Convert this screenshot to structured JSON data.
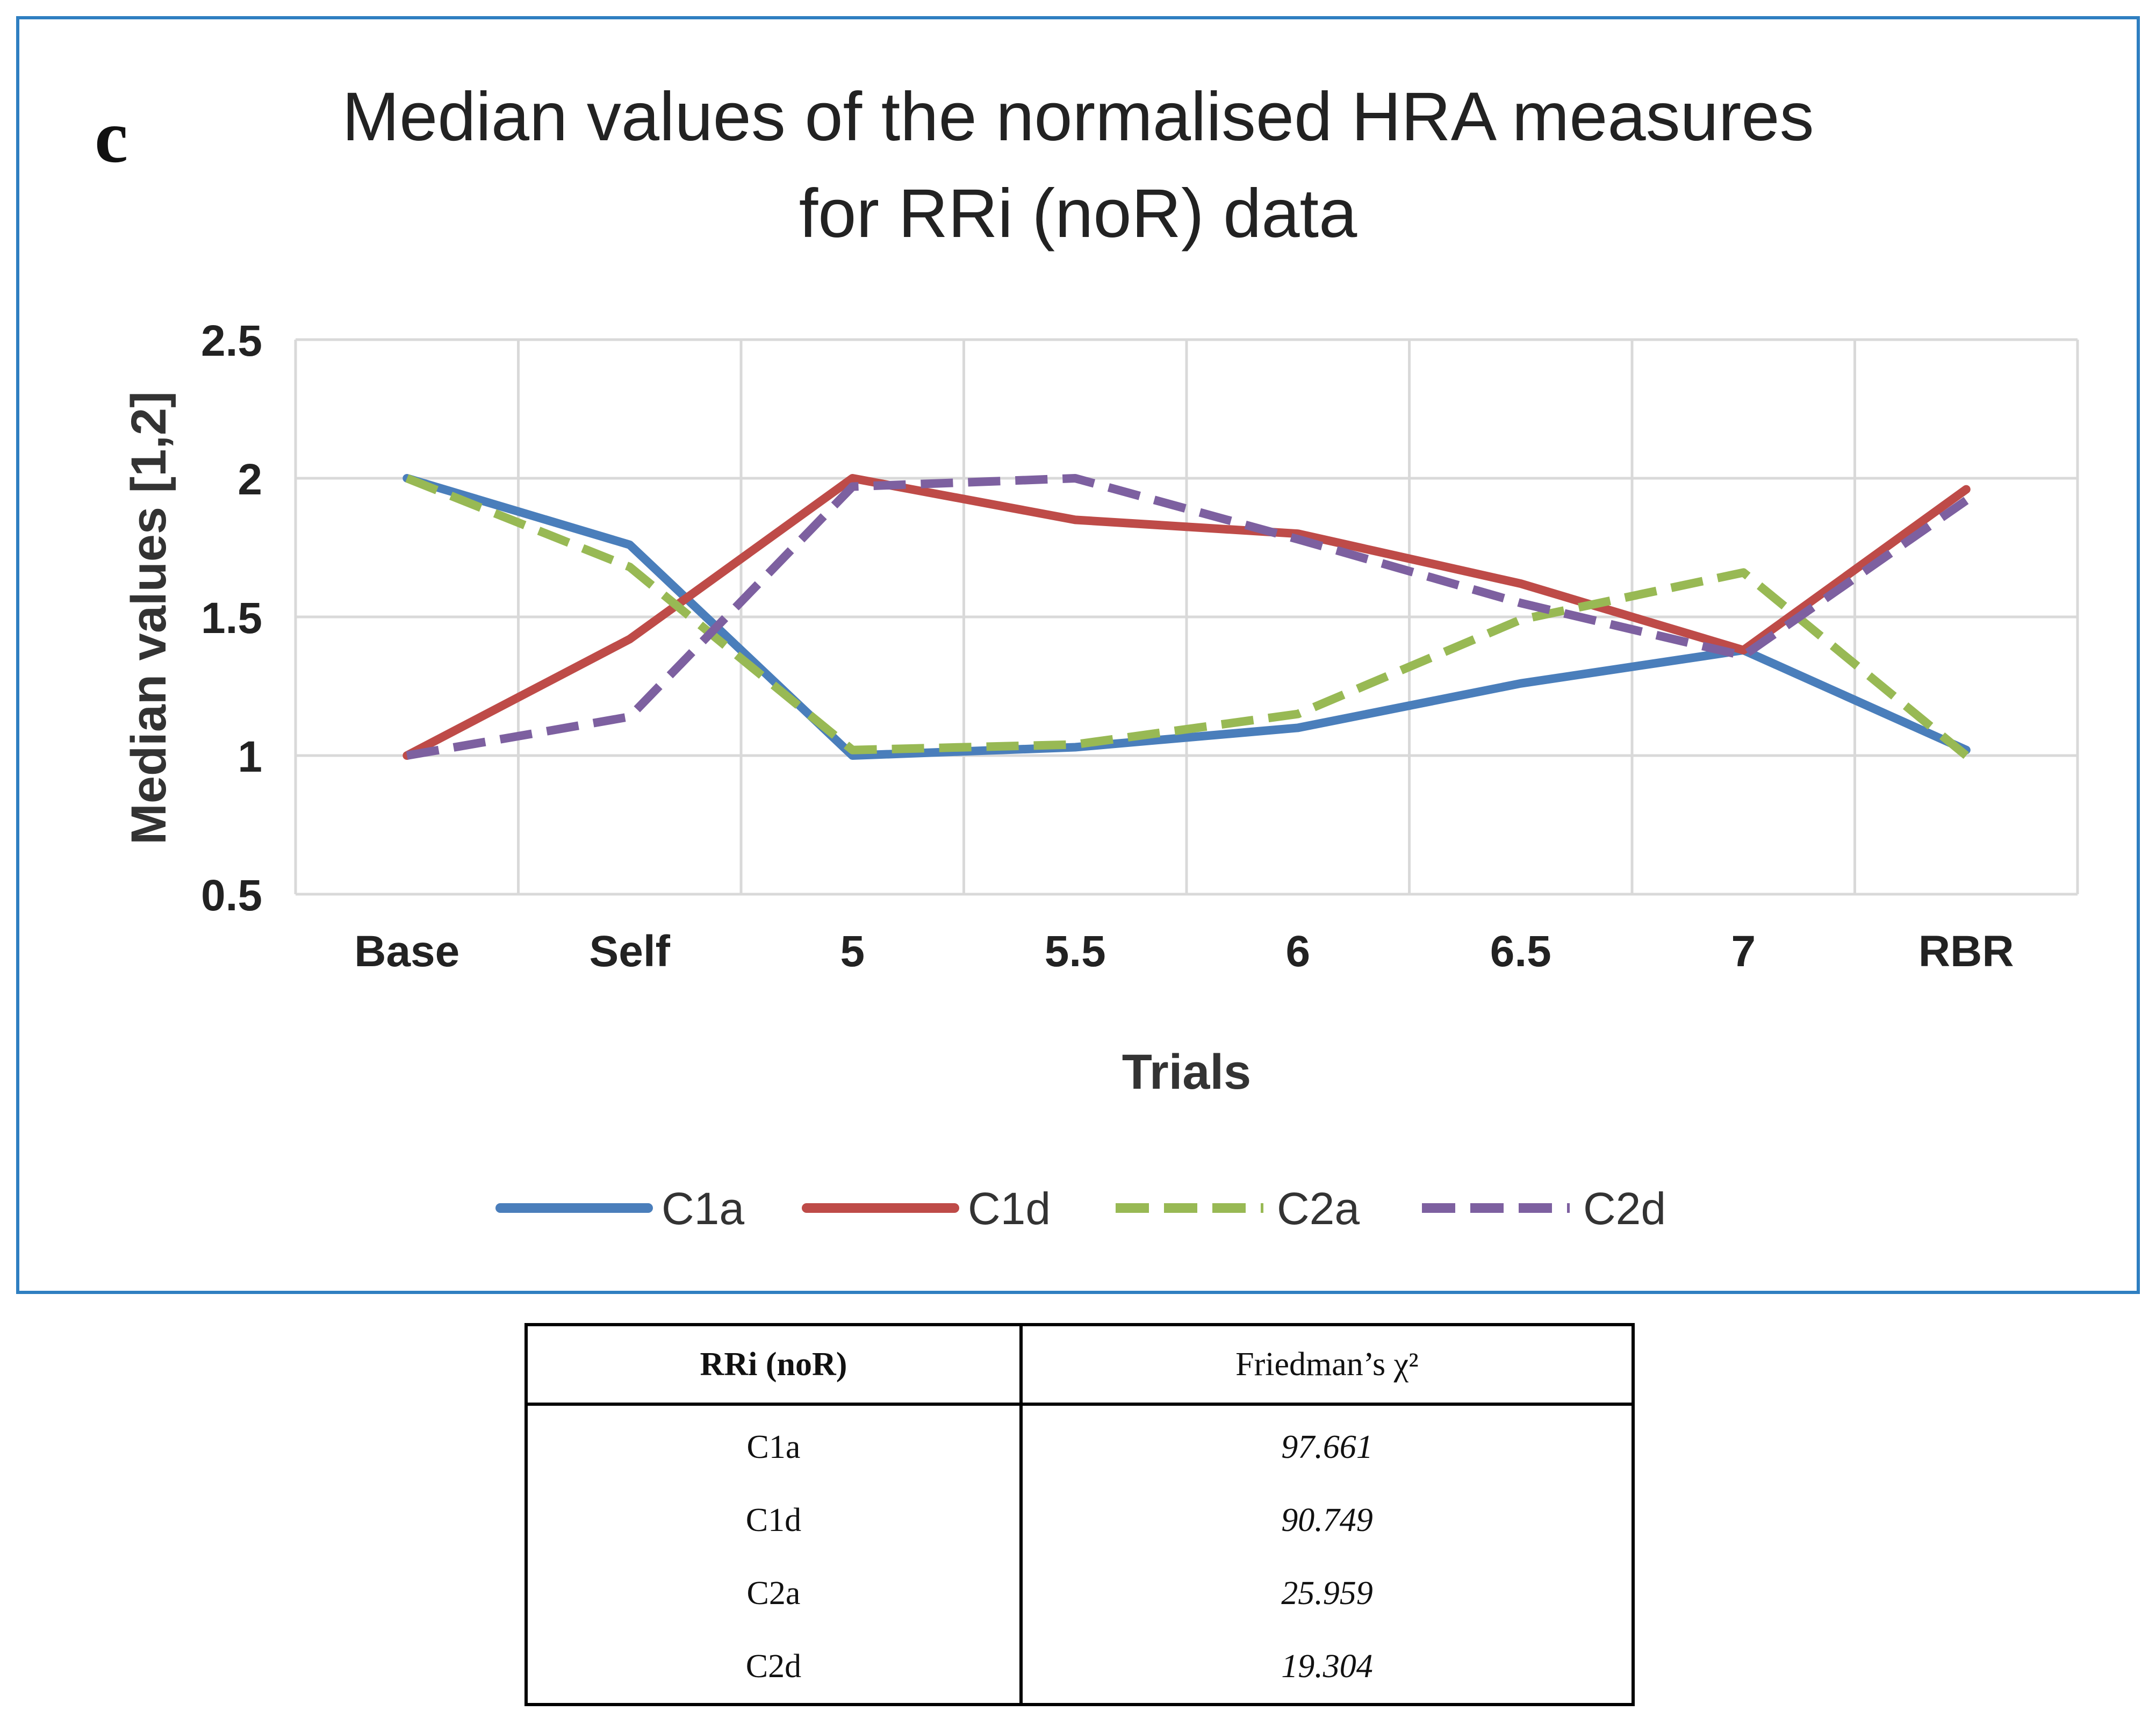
{
  "chart_data": {
    "type": "line",
    "panel_letter": "c",
    "title": [
      "Median values of the normalised HRA measures",
      "for RRi (noR) data"
    ],
    "xlabel": "Trials",
    "ylabel": "Median values [1,2]",
    "categories": [
      "Base",
      "Self",
      "5",
      "5.5",
      "6",
      "6.5",
      "7",
      "RBR"
    ],
    "ylim": [
      0.5,
      2.5
    ],
    "yticks": [
      "0.5",
      "1",
      "1.5",
      "2",
      "2.5"
    ],
    "grid": true,
    "legend_position": "bottom",
    "series": [
      {
        "name": "C1a",
        "color": "#4a7ebb",
        "dash": "solid",
        "values": [
          2.0,
          1.76,
          1.0,
          1.03,
          1.1,
          1.26,
          1.38,
          1.02
        ]
      },
      {
        "name": "C1d",
        "color": "#be4b48",
        "dash": "solid",
        "values": [
          1.0,
          1.42,
          2.0,
          1.85,
          1.8,
          1.62,
          1.38,
          1.96
        ]
      },
      {
        "name": "C2a",
        "color": "#98b954",
        "dash": "dashed",
        "values": [
          2.0,
          1.68,
          1.02,
          1.04,
          1.15,
          1.49,
          1.66,
          1.0
        ]
      },
      {
        "name": "C2d",
        "color": "#7d60a0",
        "dash": "dashed",
        "values": [
          1.0,
          1.14,
          1.97,
          2.0,
          1.78,
          1.55,
          1.36,
          1.92
        ]
      }
    ]
  },
  "table": {
    "header": [
      "RRi (noR)",
      "Friedman’s χ²"
    ],
    "rows": [
      {
        "measure": "C1a",
        "value": "97.661"
      },
      {
        "measure": "C1d",
        "value": "90.749"
      },
      {
        "measure": "C2a",
        "value": "25.959"
      },
      {
        "measure": "C2d",
        "value": "19.304"
      }
    ]
  }
}
